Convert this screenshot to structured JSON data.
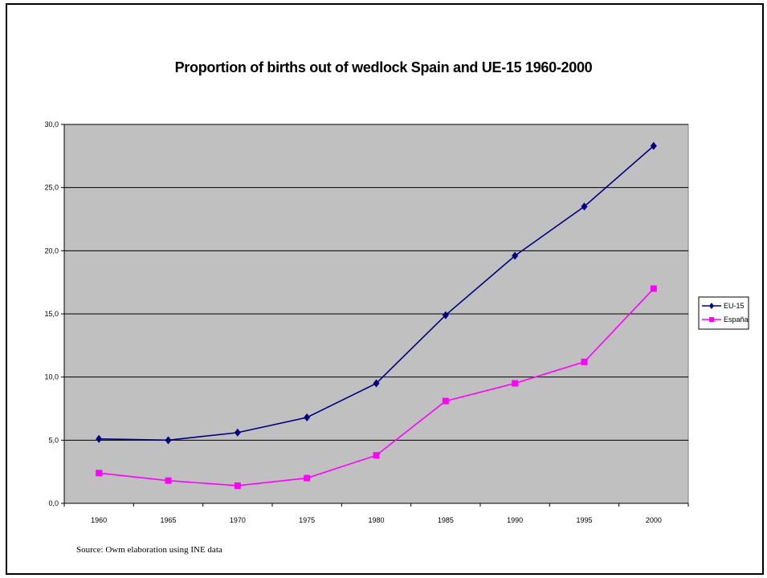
{
  "chart_data": {
    "type": "line",
    "title": "Proportion of births out of wedlock Spain and UE-15 1960-2000",
    "xlabel": "",
    "ylabel": "",
    "categories": [
      "1960",
      "1965",
      "1970",
      "1975",
      "1980",
      "1985",
      "1990",
      "1995",
      "2000"
    ],
    "ylim": [
      0,
      30
    ],
    "yticks": [
      "0,0",
      "5,0",
      "10,0",
      "15,0",
      "20,0",
      "25,0",
      "30,0"
    ],
    "grid": true,
    "legend_position": "right",
    "series": [
      {
        "name": "EU-15",
        "color": "#000080",
        "marker": "diamond",
        "values": [
          5.1,
          5.0,
          5.6,
          6.8,
          9.5,
          14.9,
          19.6,
          23.5,
          28.3
        ]
      },
      {
        "name": "España",
        "color": "#ff00ff",
        "marker": "square",
        "values": [
          2.4,
          1.8,
          1.4,
          2.0,
          3.8,
          8.1,
          9.5,
          11.2,
          17.0
        ]
      }
    ],
    "plot_background": "#c0c0c0"
  },
  "source_note": "Source: Owm elaboration using INE data"
}
